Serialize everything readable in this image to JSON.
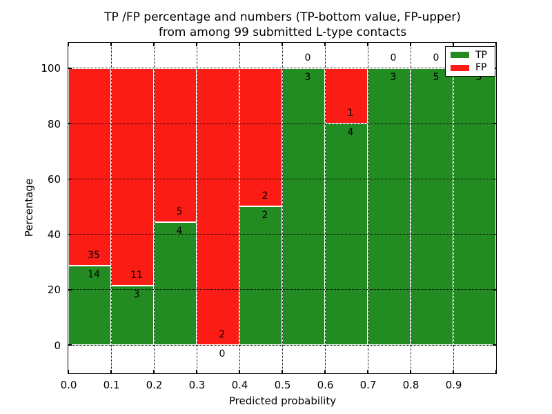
{
  "title": {
    "line1": "TP /FP percentage and numbers (TP-bottom value, FP-upper)",
    "line2": "from among 99 submitted L-type contacts"
  },
  "axes": {
    "xlabel": "Predicted probability",
    "ylabel": "Percentage",
    "x_tick_labels": [
      "0.0",
      "0.1",
      "0.2",
      "0.3",
      "0.4",
      "0.5",
      "0.6",
      "0.7",
      "0.8",
      "0.9"
    ],
    "y_tick_labels": [
      "0",
      "20",
      "40",
      "60",
      "80",
      "100"
    ],
    "xlim": [
      0.0,
      1.0
    ],
    "ylim": [
      -10.2,
      109.2
    ],
    "grid": "dotted"
  },
  "legend": {
    "position": "upper right",
    "items": [
      {
        "label": "TP",
        "color": "#228b22"
      },
      {
        "label": "FP",
        "color": "#fb1c15"
      }
    ]
  },
  "colors": {
    "tp": "#228b22",
    "fp": "#fb1c15",
    "bar_edge": "#ffffff",
    "text": "#000000"
  },
  "chart_data": {
    "type": "bar",
    "stacked": true,
    "total_contacts": 99,
    "bin_width": 0.1,
    "categories": [
      "0.0-0.1",
      "0.1-0.2",
      "0.2-0.3",
      "0.3-0.4",
      "0.4-0.5",
      "0.5-0.6",
      "0.6-0.7",
      "0.7-0.8",
      "0.8-0.9",
      "0.9-1.0"
    ],
    "bins": [
      {
        "start": 0.0,
        "tp": 14,
        "fp": 35
      },
      {
        "start": 0.1,
        "tp": 3,
        "fp": 11
      },
      {
        "start": 0.2,
        "tp": 4,
        "fp": 5
      },
      {
        "start": 0.3,
        "tp": 0,
        "fp": 2
      },
      {
        "start": 0.4,
        "tp": 2,
        "fp": 2
      },
      {
        "start": 0.5,
        "tp": 3,
        "fp": 0
      },
      {
        "start": 0.6,
        "tp": 4,
        "fp": 1
      },
      {
        "start": 0.7,
        "tp": 3,
        "fp": 0
      },
      {
        "start": 0.8,
        "tp": 5,
        "fp": 0
      },
      {
        "start": 0.9,
        "tp": 5,
        "fp": 0
      }
    ],
    "series": [
      {
        "name": "TP",
        "counts": [
          14,
          3,
          4,
          0,
          2,
          3,
          4,
          3,
          5,
          5
        ],
        "percent": [
          28.57,
          21.43,
          44.44,
          0.0,
          50.0,
          100.0,
          80.0,
          100.0,
          100.0,
          100.0
        ]
      },
      {
        "name": "FP",
        "counts": [
          35,
          11,
          5,
          2,
          2,
          0,
          1,
          0,
          0,
          0
        ],
        "percent": [
          71.43,
          78.57,
          55.56,
          100.0,
          50.0,
          0.0,
          20.0,
          0.0,
          0.0,
          0.0
        ]
      }
    ]
  }
}
